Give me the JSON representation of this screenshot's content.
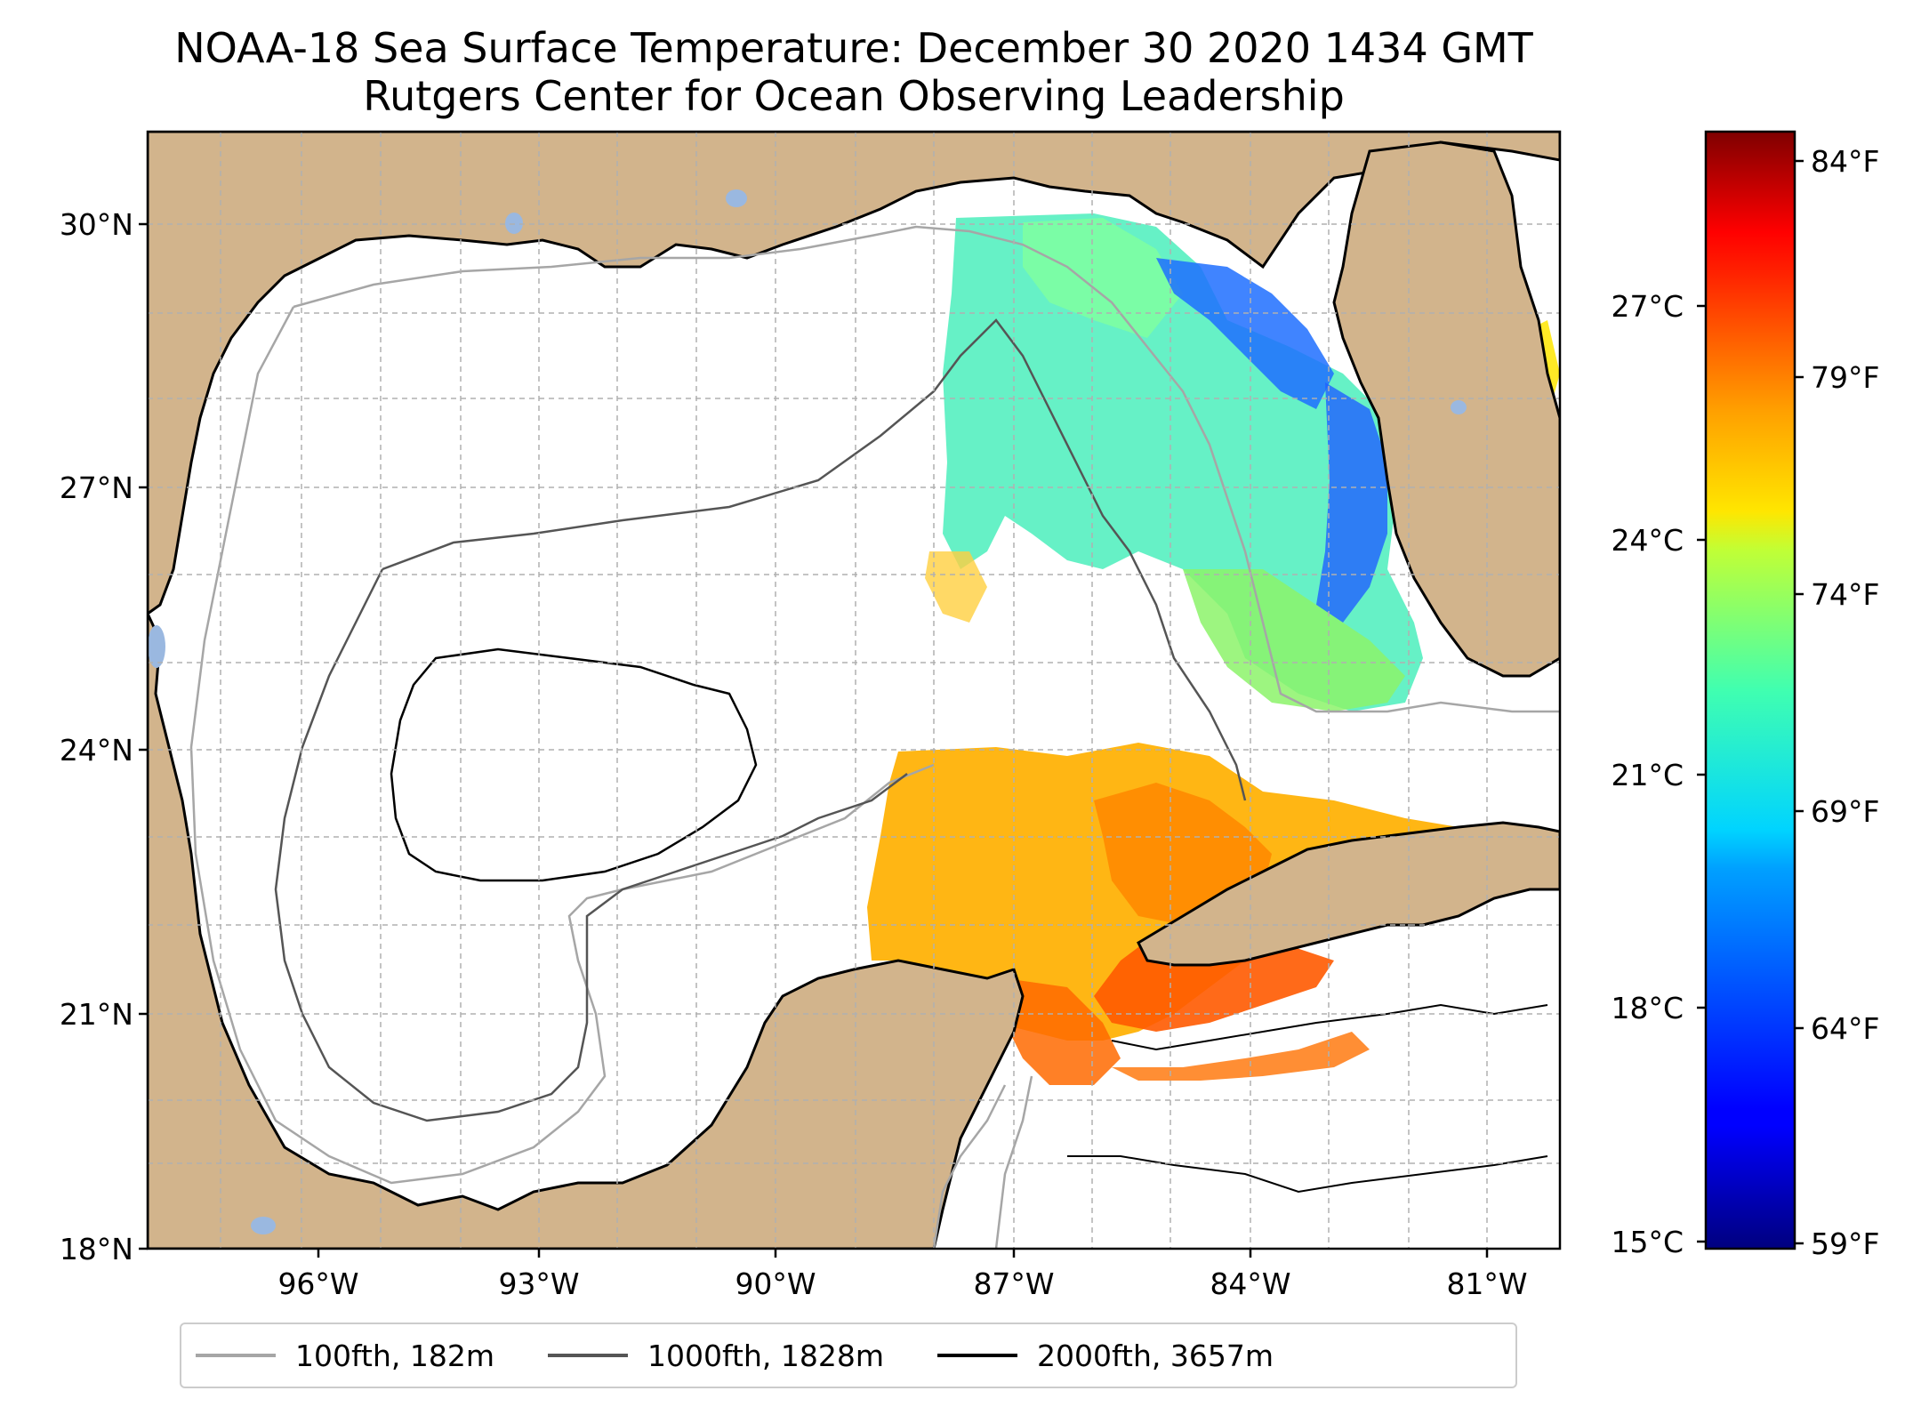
{
  "title": "NOAA-18 Sea Surface Temperature: December 30 2020 1434 GMT",
  "subtitle": "Rutgers Center for Ocean Observing Leadership",
  "map": {
    "lat_ticks": [
      "30°N",
      "27°N",
      "24°N",
      "21°N",
      "18°N"
    ],
    "lon_ticks": [
      "96°W",
      "93°W",
      "90°W",
      "87°W",
      "84°W",
      "81°W"
    ],
    "lat_range": [
      18,
      31
    ],
    "lon_range": [
      -98,
      -80.5
    ],
    "land_color": "#d2b48c",
    "water_color": "#ffffff",
    "lake_color": "#9ab8e0",
    "grid": true
  },
  "legend": {
    "items": [
      {
        "label": "100fth, 182m",
        "color": "#a6a6a6"
      },
      {
        "label": "1000fth, 1828m",
        "color": "#555555"
      },
      {
        "label": "2000fth, 3657m",
        "color": "#000000"
      }
    ]
  },
  "colorbar": {
    "colormap": "jet",
    "celsius_ticks": [
      "27°C",
      "24°C",
      "21°C",
      "18°C",
      "15°C"
    ],
    "fahrenheit_ticks": [
      "84°F",
      "79°F",
      "74°F",
      "69°F",
      "64°F",
      "59°F"
    ],
    "range_c": [
      14.9,
      29.2
    ]
  }
}
